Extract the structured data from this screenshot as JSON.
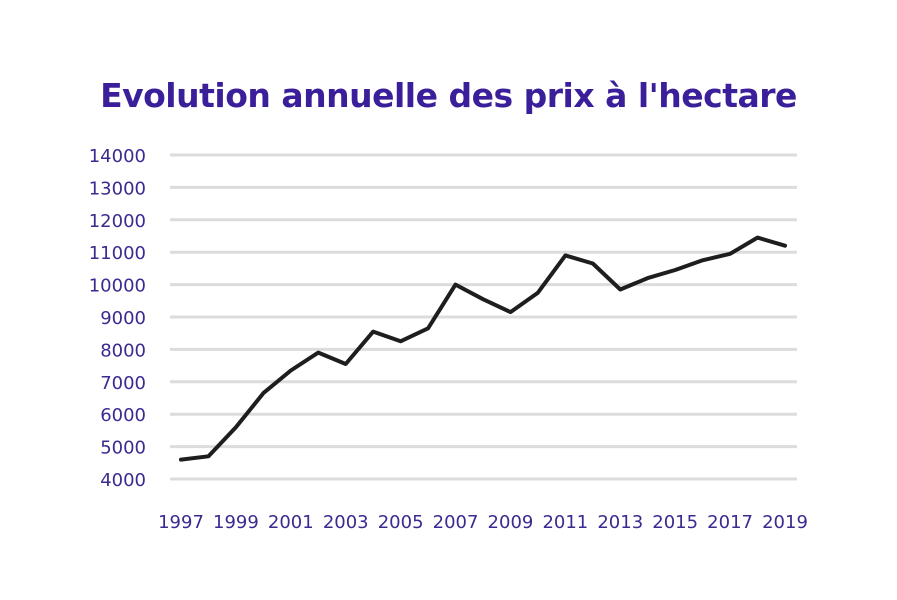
{
  "chart_data": {
    "type": "line",
    "title": "Evolution annuelle des prix à l'hectare",
    "xlabel": "",
    "ylabel": "",
    "ylim": [
      4000,
      14000
    ],
    "y_ticks": [
      14000,
      13000,
      12000,
      11000,
      10000,
      9000,
      8000,
      7000,
      6000,
      5000,
      4000
    ],
    "x_tick_labels": [
      "1997",
      "1999",
      "2001",
      "2003",
      "2005",
      "2007",
      "2009",
      "2011",
      "2013",
      "2015",
      "2017",
      "2019"
    ],
    "grid": "horizontal",
    "series": [
      {
        "color": "#1e1e1e",
        "x": [
          1997,
          1998,
          1999,
          2000,
          2001,
          2002,
          2003,
          2004,
          2005,
          2006,
          2007,
          2008,
          2009,
          2010,
          2011,
          2012,
          2013,
          2014,
          2015,
          2016,
          2017,
          2018,
          2019
        ],
        "values": [
          4600,
          4700,
          5600,
          6650,
          7350,
          7900,
          7550,
          8550,
          8250,
          8650,
          10000,
          9550,
          9150,
          9750,
          10900,
          10650,
          9850,
          10200,
          10450,
          10750,
          10950,
          11450,
          11200
        ]
      }
    ]
  }
}
